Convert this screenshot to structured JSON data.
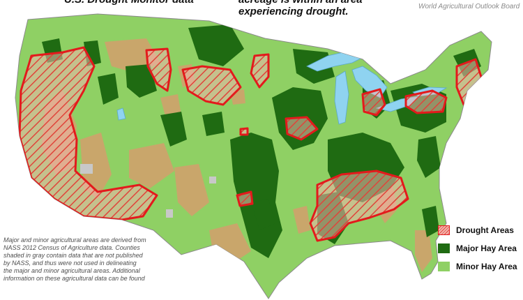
{
  "header": {
    "left_text": "U.S. Drought Monitor data",
    "right_lines": [
      "acreage is within an area",
      "experiencing drought."
    ],
    "board_credit": "World Agricultural Outlook Board"
  },
  "legend": {
    "items": [
      {
        "label": "Drought Areas",
        "color": "#e31a1c",
        "pattern": "hatched"
      },
      {
        "label": "Major Hay Area",
        "color": "#1f6b12"
      },
      {
        "label": "Minor Hay Area",
        "color": "#8fd064"
      }
    ]
  },
  "footnote": {
    "lines": [
      "Major and minor agricultural areas are derived from",
      "NASS 2012 Census of Agriculture data.  Counties",
      "shaded in gray contain data that are not published",
      "by NASS, and thus were not used in delineating",
      "the major and minor agricultural areas.  Additional",
      "information on these agricultural data can be found"
    ]
  },
  "colors": {
    "major_hay": "#1f6b12",
    "minor_hay": "#8fd064",
    "non_agricultural": "#c9a66b",
    "unpublished": "#c8c8c8",
    "water": "#8fd3f0",
    "drought_outline": "#e31a1c"
  }
}
